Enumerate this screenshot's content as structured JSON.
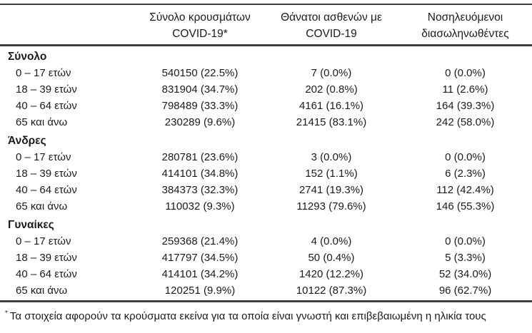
{
  "header": {
    "cases": {
      "line1": "Σύνολο κρουσμάτων",
      "line2": "COVID-19*"
    },
    "deaths": {
      "line1": "Θάνατοι ασθενών με",
      "line2": "COVID-19"
    },
    "intubated": {
      "line1": "Νοσηλευόμενοι",
      "line2": "διασωληνωθέντες"
    }
  },
  "groups": [
    {
      "label": "Σύνολο",
      "rows": [
        {
          "age": "0 – 17 ετών",
          "cases": "540150 (22.5%)",
          "deaths": "7 (0.0%)",
          "intubated": "0 (0.0%)"
        },
        {
          "age": "18 – 39 ετών",
          "cases": "831904 (34.7%)",
          "deaths": "202 (0.8%)",
          "intubated": "11 (2.6%)"
        },
        {
          "age": "40 – 64 ετών",
          "cases": "798489 (33.3%)",
          "deaths": "4161 (16.1%)",
          "intubated": "164 (39.3%)"
        },
        {
          "age": "65 και άνω",
          "cases": "230289 (9.6%)",
          "deaths": "21415 (83.1%)",
          "intubated": "242 (58.0%)"
        }
      ]
    },
    {
      "label": "Άνδρες",
      "rows": [
        {
          "age": "0 – 17 ετών",
          "cases": "280781 (23.6%)",
          "deaths": "3 (0.0%)",
          "intubated": "0 (0.0%)"
        },
        {
          "age": "18 – 39 ετών",
          "cases": "414101 (34.8%)",
          "deaths": "152 (1.1%)",
          "intubated": "6 (2.3%)"
        },
        {
          "age": "40 – 64 ετών",
          "cases": "384373 (32.3%)",
          "deaths": "2741 (19.3%)",
          "intubated": "112 (42.4%)"
        },
        {
          "age": "65 και άνω",
          "cases": "110032 (9.3%)",
          "deaths": "11293 (79.6%)",
          "intubated": "146 (55.3%)"
        }
      ]
    },
    {
      "label": "Γυναίκες",
      "rows": [
        {
          "age": "0 – 17 ετών",
          "cases": "259368 (21.4%)",
          "deaths": "4 (0.0%)",
          "intubated": "0 (0.0%)"
        },
        {
          "age": "18 – 39 ετών",
          "cases": "417797 (34.5%)",
          "deaths": "50 (0.4%)",
          "intubated": "5 (3.3%)"
        },
        {
          "age": "40 – 64 ετών",
          "cases": "414101 (34.2%)",
          "deaths": "1420 (12.2%)",
          "intubated": "52 (34.0%)"
        },
        {
          "age": "65 και άνω",
          "cases": "120251 (9.9%)",
          "deaths": "10122 (87.3%)",
          "intubated": "96 (62.7%)"
        }
      ]
    }
  ],
  "footnote": {
    "marker": "*",
    "text": "Τα στοιχεία αφορούν τα κρούσματα εκείνα για τα οποία είναι γνωστή και επιβεβαιωμένη η ηλικία τους"
  }
}
